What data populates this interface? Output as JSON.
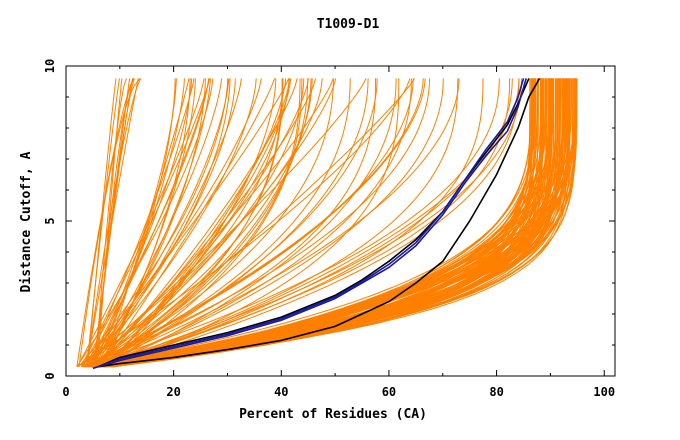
{
  "chart_data": {
    "type": "line",
    "title": "T1009-D1",
    "xlabel": "Percent of Residues (CA)",
    "ylabel": "Distance Cutoff, A",
    "xlim": [
      0,
      102
    ],
    "ylim": [
      0,
      10
    ],
    "x_ticks": [
      {
        "value": 0,
        "label": "0"
      },
      {
        "value": 20,
        "label": "20"
      },
      {
        "value": 40,
        "label": "40"
      },
      {
        "value": 60,
        "label": "60"
      },
      {
        "value": 80,
        "label": "80"
      },
      {
        "value": 100,
        "label": "100"
      }
    ],
    "y_ticks": [
      {
        "value": 0,
        "label": "0"
      },
      {
        "value": 5,
        "label": "5"
      },
      {
        "value": 10,
        "label": "10"
      }
    ],
    "y_max_plotted": 9.6,
    "grid": false,
    "legend": "none",
    "colors": {
      "models": "#ff8000",
      "highlight_blue": "#1a1aa0",
      "highlight_black": "#000000"
    },
    "highlight_series": [
      {
        "color": "#000000",
        "points": [
          [
            6,
            0.3
          ],
          [
            10,
            0.4
          ],
          [
            20,
            0.6
          ],
          [
            30,
            0.85
          ],
          [
            40,
            1.15
          ],
          [
            50,
            1.6
          ],
          [
            55,
            2.0
          ],
          [
            60,
            2.4
          ],
          [
            65,
            3.0
          ],
          [
            70,
            3.7
          ],
          [
            75,
            5.0
          ],
          [
            80,
            6.5
          ],
          [
            84,
            8.0
          ],
          [
            86,
            9.0
          ],
          [
            88,
            9.6
          ]
        ]
      },
      {
        "color": "#000000",
        "points": [
          [
            6,
            0.3
          ],
          [
            10,
            0.6
          ],
          [
            20,
            1.0
          ],
          [
            30,
            1.4
          ],
          [
            40,
            1.9
          ],
          [
            50,
            2.6
          ],
          [
            55,
            3.1
          ],
          [
            60,
            3.7
          ],
          [
            65,
            4.4
          ],
          [
            70,
            5.3
          ],
          [
            74,
            6.3
          ],
          [
            78,
            7.2
          ],
          [
            82,
            8.1
          ],
          [
            84,
            8.8
          ],
          [
            86,
            9.6
          ]
        ]
      },
      {
        "color": "#1a1aa0",
        "points": [
          [
            5,
            0.25
          ],
          [
            10,
            0.5
          ],
          [
            20,
            0.9
          ],
          [
            30,
            1.3
          ],
          [
            40,
            1.8
          ],
          [
            50,
            2.5
          ],
          [
            55,
            3.0
          ],
          [
            60,
            3.5
          ],
          [
            65,
            4.2
          ],
          [
            70,
            5.2
          ],
          [
            74,
            6.2
          ],
          [
            78,
            7.1
          ],
          [
            82,
            7.9
          ],
          [
            84,
            8.7
          ],
          [
            85.5,
            9.6
          ]
        ]
      },
      {
        "color": "#1a1aa0",
        "points": [
          [
            6,
            0.3
          ],
          [
            10,
            0.55
          ],
          [
            20,
            0.95
          ],
          [
            30,
            1.35
          ],
          [
            40,
            1.85
          ],
          [
            50,
            2.55
          ],
          [
            55,
            3.05
          ],
          [
            60,
            3.6
          ],
          [
            65,
            4.3
          ],
          [
            70,
            5.3
          ],
          [
            74,
            6.3
          ],
          [
            78,
            7.3
          ],
          [
            82,
            8.2
          ],
          [
            84,
            9.0
          ],
          [
            85,
            9.6
          ]
        ]
      }
    ],
    "model_families": [
      {
        "name_hidden": "",
        "count": 12,
        "x0": [
          2,
          6
        ],
        "x_end": [
          9,
          14
        ],
        "shape": 0.8
      },
      {
        "name_hidden": "",
        "count": 40,
        "x0": [
          2,
          8
        ],
        "x_end": [
          20,
          68
        ],
        "shape": 1.4
      },
      {
        "name_hidden": "",
        "count": 30,
        "x0": [
          3,
          8
        ],
        "x_end": [
          40,
          88
        ],
        "shape": 2.2
      },
      {
        "name_hidden": "",
        "count": 120,
        "x0": [
          3,
          9
        ],
        "x_end": [
          86,
          95
        ],
        "shape": 4.5
      }
    ]
  }
}
